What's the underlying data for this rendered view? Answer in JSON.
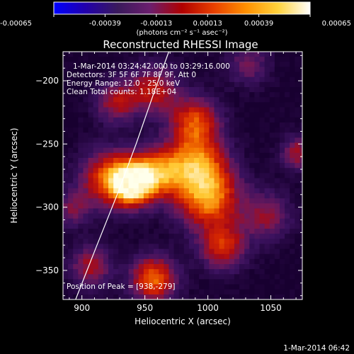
{
  "chart_data": {
    "type": "heatmap",
    "title": "Reconstructed RHESSI Image",
    "xlabel": "Heliocentric X (arcsec)",
    "ylabel": "Heliocentric Y (arcsec)",
    "xlim": [
      885,
      1075
    ],
    "ylim": [
      -373,
      -177
    ],
    "x_ticks": [
      900,
      950,
      1000,
      1050
    ],
    "y_ticks": [
      -200,
      -250,
      -300,
      -350
    ],
    "colorbar": {
      "ticks": [
        -0.00065,
        -0.00039,
        -0.00013,
        0.00013,
        0.00039,
        0.00065
      ],
      "tick_labels": [
        "-0.00065",
        "-0.00039",
        "-0.00013",
        "0.00013",
        "0.00039",
        "0.00065"
      ],
      "label": "(photons cm⁻² s⁻¹ asec⁻²)",
      "colors": [
        "#0000ff",
        "#2200aa",
        "#3a1a5c",
        "#6b1e6e",
        "#b00000",
        "#e84000",
        "#ff9000",
        "#ffd23c",
        "#ffffff"
      ]
    },
    "info_lines": [
      "1-Mar-2014 03:24:42.000 to 03:29:16.000",
      "Detectors: 3F 5F 6F 7F 8F 9F, Att 0",
      "Energy Range: 12.0 - 25.0 keV",
      "Clean     Total counts: 1.18E+04"
    ],
    "peak_label": "Position of Peak = [938,-279]",
    "peak": [
      938,
      -279
    ],
    "limb_curve": [
      [
        895,
        -373
      ],
      [
        912,
        -330
      ],
      [
        928,
        -290
      ],
      [
        943,
        -250
      ],
      [
        957,
        -210
      ],
      [
        969,
        -177
      ]
    ],
    "emission_sources": [
      {
        "x": 938,
        "y": -279,
        "sigma": 12,
        "amp": 1.0
      },
      {
        "x": 918,
        "y": -275,
        "sigma": 16,
        "amp": 0.55
      },
      {
        "x": 960,
        "y": -270,
        "sigma": 14,
        "amp": 0.6
      },
      {
        "x": 990,
        "y": -262,
        "sigma": 16,
        "amp": 0.55
      },
      {
        "x": 998,
        "y": -290,
        "sigma": 18,
        "amp": 0.7
      },
      {
        "x": 988,
        "y": -230,
        "sigma": 14,
        "amp": 0.55
      },
      {
        "x": 955,
        "y": -205,
        "sigma": 14,
        "amp": 0.45
      },
      {
        "x": 925,
        "y": -215,
        "sigma": 12,
        "amp": 0.4
      },
      {
        "x": 1010,
        "y": -330,
        "sigma": 13,
        "amp": 0.5
      },
      {
        "x": 955,
        "y": -355,
        "sigma": 13,
        "amp": 0.65
      },
      {
        "x": 905,
        "y": -345,
        "sigma": 12,
        "amp": 0.4
      },
      {
        "x": 1045,
        "y": -305,
        "sigma": 14,
        "amp": 0.35
      },
      {
        "x": 1070,
        "y": -255,
        "sigma": 10,
        "amp": 0.4
      },
      {
        "x": 1030,
        "y": -185,
        "sigma": 12,
        "amp": 0.3
      },
      {
        "x": 890,
        "y": -300,
        "sigma": 10,
        "amp": 0.3
      }
    ],
    "footer_date": "1-Mar-2014 06:42"
  }
}
